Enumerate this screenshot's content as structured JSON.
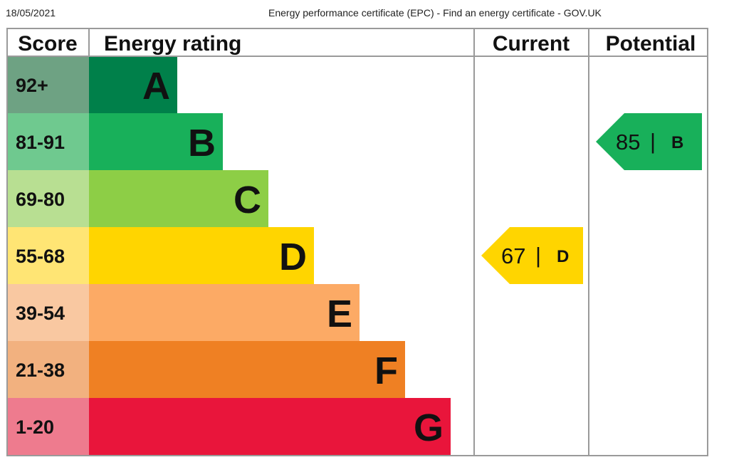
{
  "page": {
    "date": "18/05/2021",
    "title": "Energy performance certificate (EPC) - Find an energy certificate - GOV.UK"
  },
  "chart_data": {
    "type": "bar",
    "headers": {
      "score": "Score",
      "rating": "Energy rating",
      "current": "Current",
      "potential": "Potential"
    },
    "bands": [
      {
        "letter": "A",
        "score": "92+",
        "bar_color": "#00804a",
        "score_color": "#6ea283"
      },
      {
        "letter": "B",
        "score": "81-91",
        "bar_color": "#18b05a",
        "score_color": "#6fc98f"
      },
      {
        "letter": "C",
        "score": "69-80",
        "bar_color": "#8dce46",
        "score_color": "#b8df92"
      },
      {
        "letter": "D",
        "score": "55-68",
        "bar_color": "#ffd500",
        "score_color": "#ffe574"
      },
      {
        "letter": "E",
        "score": "39-54",
        "bar_color": "#fcaa65",
        "score_color": "#f9c8a1"
      },
      {
        "letter": "F",
        "score": "21-38",
        "bar_color": "#ef8023",
        "score_color": "#f2b17f"
      },
      {
        "letter": "G",
        "score": "1-20",
        "bar_color": "#e9153b",
        "score_color": "#ee7b8e"
      }
    ],
    "current": {
      "value": 67,
      "letter": "D",
      "separator": "|",
      "color": "#ffd500"
    },
    "potential": {
      "value": 85,
      "letter": "B",
      "separator": "|",
      "color": "#18b05a"
    }
  }
}
